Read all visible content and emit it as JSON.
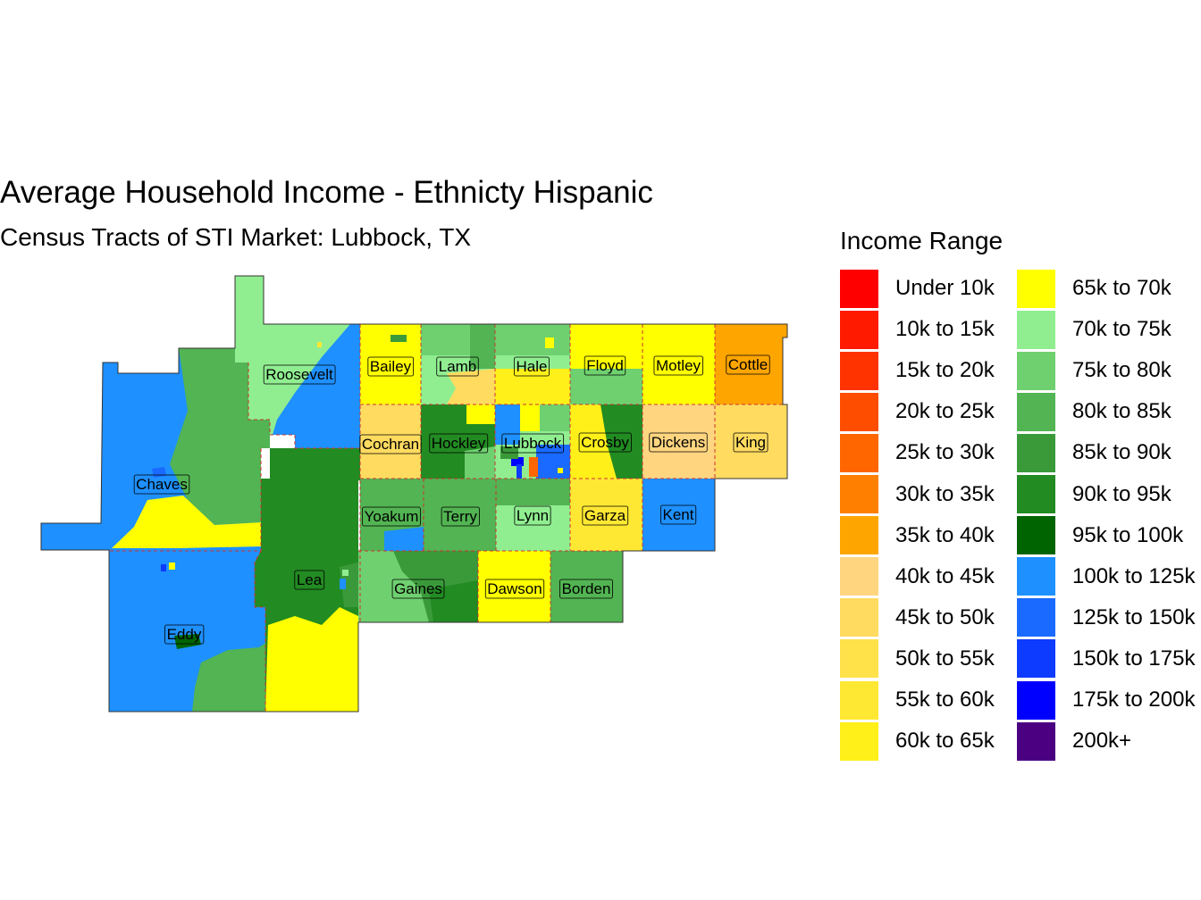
{
  "title": "Average Household Income - Ethnicty Hispanic",
  "subtitle": "Census Tracts of STI Market: Lubbock, TX",
  "legend": {
    "title": "Income Range",
    "items": [
      {
        "label": "Under 10k",
        "color": "#FF0000"
      },
      {
        "label": "10k to 15k",
        "color": "#FF1A00"
      },
      {
        "label": "15k to 20k",
        "color": "#FF3300"
      },
      {
        "label": "20k to 25k",
        "color": "#FF4D00"
      },
      {
        "label": "25k to 30k",
        "color": "#FF6600"
      },
      {
        "label": "30k to 35k",
        "color": "#FF8000"
      },
      {
        "label": "35k to 40k",
        "color": "#FFA500"
      },
      {
        "label": "40k to 45k",
        "color": "#FFD580"
      },
      {
        "label": "45k to 50k",
        "color": "#FFDB60"
      },
      {
        "label": "50k to 55k",
        "color": "#FFE14A"
      },
      {
        "label": "55k to 60k",
        "color": "#FFE833"
      },
      {
        "label": "60k to 65k",
        "color": "#FFF01A"
      },
      {
        "label": "65k to 70k",
        "color": "#FFFF00"
      },
      {
        "label": "70k to 75k",
        "color": "#90EE90"
      },
      {
        "label": "75k to 80k",
        "color": "#6FD06F"
      },
      {
        "label": "80k to 85k",
        "color": "#52B452"
      },
      {
        "label": "85k to 90k",
        "color": "#3A9A3A"
      },
      {
        "label": "90k to 95k",
        "color": "#228B22"
      },
      {
        "label": "95k to 100k",
        "color": "#006400"
      },
      {
        "label": "100k to 125k",
        "color": "#1E90FF"
      },
      {
        "label": "125k to 150k",
        "color": "#1A6AFF"
      },
      {
        "label": "150k to 175k",
        "color": "#0D3BFF"
      },
      {
        "label": "175k to 200k",
        "color": "#0000FF"
      },
      {
        "label": "200k+",
        "color": "#4B0082"
      }
    ]
  },
  "counties": {
    "roosevelt": "Roosevelt",
    "chaves": "Chaves",
    "eddy": "Eddy",
    "lea": "Lea",
    "bailey": "Bailey",
    "lamb": "Lamb",
    "hale": "Hale",
    "floyd": "Floyd",
    "motley": "Motley",
    "cottle": "Cottle",
    "cochran": "Cochran",
    "hockley": "Hockley",
    "lubbock": "Lubbock",
    "crosby": "Crosby",
    "dickens": "Dickens",
    "king": "King",
    "yoakum": "Yoakum",
    "terry": "Terry",
    "lynn": "Lynn",
    "garza": "Garza",
    "kent": "Kent",
    "gaines": "Gaines",
    "dawson": "Dawson",
    "borden": "Borden"
  }
}
